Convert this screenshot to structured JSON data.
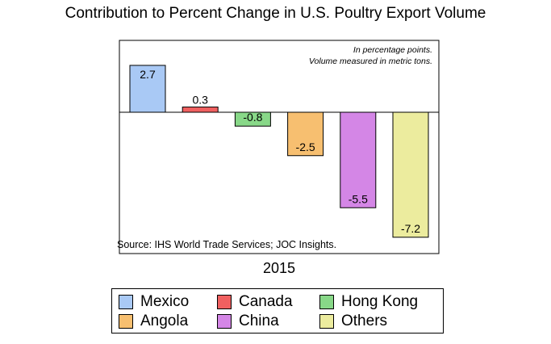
{
  "chart_data": {
    "type": "bar",
    "title": "Contribution to Percent Change in U.S. Poultry Export Volume",
    "annotations": [
      "In percentage points.",
      "Volume measured in metric tons."
    ],
    "source": "Source: IHS World Trade Services; JOC Insights.",
    "xlabel": "2015",
    "ylabel": "",
    "ylim": [
      -8.2,
      3.5
    ],
    "grid": false,
    "legend_placement": "bottom",
    "series": [
      {
        "name": "Mexico",
        "value": 2.7,
        "label": "2.7",
        "color": "#a9c9f5"
      },
      {
        "name": "Canada",
        "value": 0.3,
        "label": "0.3",
        "color": "#f06060"
      },
      {
        "name": "Hong Kong",
        "value": -0.8,
        "label": "-0.8",
        "color": "#88d888"
      },
      {
        "name": "Angola",
        "value": -2.5,
        "label": "-2.5",
        "color": "#f7bf70"
      },
      {
        "name": "China",
        "value": -5.5,
        "label": "-5.5",
        "color": "#d486e6"
      },
      {
        "name": "Others",
        "value": -7.2,
        "label": "-7.2",
        "color": "#ecec9e"
      }
    ]
  }
}
